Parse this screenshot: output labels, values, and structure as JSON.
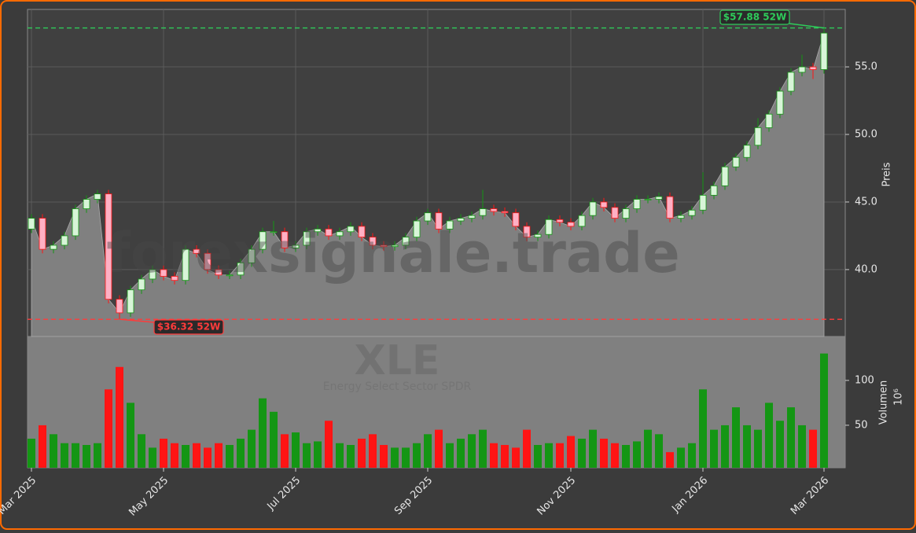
{
  "chart_data": {
    "type": "candlestick",
    "watermark": "forexsignale.trade",
    "ticker": "XLE",
    "subtitle": "Energy Select Sector SPDR",
    "ylabel": "Preis",
    "volume_ylabel": "Volumen",
    "volume_exponent": "10⁶",
    "grid": true,
    "up_color": "#149614",
    "down_color": "#ff1414",
    "candle_up_color": "#d8f5d8",
    "candle_down_color": "#ffb0c4",
    "area_color": "#808080",
    "categories": [
      "Mar 2025",
      null,
      null,
      null,
      null,
      null,
      null,
      null,
      null,
      null,
      null,
      null,
      "May 2025",
      null,
      null,
      null,
      null,
      null,
      null,
      null,
      null,
      null,
      null,
      null,
      "Jul 2025",
      null,
      null,
      null,
      null,
      null,
      null,
      null,
      null,
      null,
      null,
      null,
      "Sep 2025",
      null,
      null,
      null,
      null,
      null,
      null,
      null,
      null,
      null,
      null,
      null,
      null,
      "Nov 2025",
      null,
      null,
      null,
      null,
      null,
      null,
      null,
      null,
      null,
      null,
      null,
      "Jan 2026",
      null,
      null,
      null,
      null,
      null,
      null,
      null,
      null,
      null,
      null,
      "Mar 2026"
    ],
    "open": [
      43.0,
      43.8,
      41.5,
      41.8,
      42.5,
      44.5,
      45.2,
      45.6,
      37.8,
      36.8,
      38.5,
      39.3,
      40,
      39.5,
      39.2,
      41.5,
      41.2,
      40,
      39.6,
      39.6,
      40.5,
      41.5,
      42.8,
      42.8,
      41.6,
      41.8,
      42.8,
      43,
      42.5,
      42.8,
      43.2,
      42.4,
      41.8,
      41.7,
      41.8,
      42.4,
      43.6,
      44.2,
      43,
      43.6,
      43.8,
      44,
      44.5,
      44.3,
      44.2,
      43.2,
      42.4,
      42.6,
      43.7,
      43.5,
      43.2,
      44,
      45,
      44.6,
      43.8,
      44.5,
      45.2,
      45.2,
      45.4,
      43.8,
      44,
      44.4,
      45.5,
      46.2,
      47.6,
      48.3,
      49.2,
      50.5,
      51.5,
      53.2,
      54.6,
      55,
      54.8
    ],
    "high": [
      44.1,
      44.1,
      42.1,
      42.8,
      44.8,
      45.5,
      45.9,
      45.9,
      38.1,
      38.8,
      39.6,
      40.3,
      40.3,
      39.8,
      41.8,
      41.8,
      41.5,
      40.3,
      39.9,
      40.8,
      41.8,
      43.1,
      43.6,
      43.1,
      42.1,
      43.1,
      43.3,
      43.3,
      43.1,
      43.5,
      43.5,
      42.7,
      42.1,
      42.1,
      42.7,
      43.9,
      44.5,
      44.5,
      43.9,
      44.1,
      44.3,
      45.9,
      44.8,
      44.6,
      44.5,
      43.5,
      42.9,
      44.0,
      44.0,
      43.8,
      44.3,
      45.3,
      45.3,
      44.9,
      44.8,
      45.5,
      45.5,
      45.7,
      45.7,
      44.3,
      44.7,
      47.2,
      46.5,
      47.9,
      48.6,
      49.5,
      51.2,
      51.8,
      53.5,
      54.9,
      55.9,
      55.3,
      57.88
    ],
    "low": [
      42.7,
      41.2,
      41.2,
      41.5,
      42.2,
      44.2,
      44.9,
      37.5,
      36.32,
      36.5,
      38.2,
      39.0,
      39.2,
      38.9,
      38.9,
      40.9,
      39.7,
      39.3,
      39.3,
      39.3,
      40.2,
      41.2,
      42.5,
      41.3,
      41.3,
      41.5,
      42.5,
      42.2,
      42.2,
      42.5,
      42.1,
      41.5,
      41.4,
      41.4,
      41.5,
      42.1,
      43.3,
      42.7,
      42.7,
      43.3,
      43.5,
      43.7,
      44.0,
      43.9,
      42.9,
      42.1,
      42.1,
      42.3,
      43.2,
      42.9,
      42.9,
      43.7,
      44.3,
      43.5,
      43.5,
      44.2,
      44.9,
      44.9,
      43.5,
      43.5,
      43.7,
      44.1,
      45.2,
      45.9,
      47.3,
      48.0,
      48.9,
      50.2,
      51.2,
      52.9,
      54.3,
      54.1,
      54.5
    ],
    "close": [
      43.8,
      41.5,
      41.8,
      42.5,
      44.5,
      45.2,
      45.6,
      37.8,
      36.8,
      38.5,
      39.3,
      40,
      39.5,
      39.2,
      41.5,
      41.2,
      40,
      39.6,
      39.6,
      40.5,
      41.5,
      42.8,
      42.8,
      41.6,
      41.8,
      42.8,
      43,
      42.5,
      42.8,
      43.2,
      42.4,
      41.8,
      41.7,
      41.8,
      42.4,
      43.6,
      44.2,
      43,
      43.6,
      43.8,
      44,
      44.5,
      44.3,
      44.2,
      43.2,
      42.4,
      42.6,
      43.7,
      43.5,
      43.2,
      44,
      45,
      44.6,
      43.8,
      44.5,
      45.2,
      45.2,
      45.4,
      43.8,
      44,
      44.4,
      45.5,
      46.2,
      47.6,
      48.3,
      49.2,
      50.5,
      51.5,
      53.2,
      54.6,
      55,
      54.8,
      57.5
    ],
    "volume": [
      35,
      50,
      40,
      30,
      30,
      28,
      30,
      90,
      115,
      75,
      40,
      25,
      35,
      30,
      28,
      30,
      25,
      30,
      28,
      35,
      45,
      80,
      65,
      40,
      42,
      30,
      32,
      55,
      30,
      28,
      35,
      40,
      28,
      25,
      25,
      30,
      40,
      45,
      30,
      35,
      40,
      45,
      30,
      28,
      25,
      45,
      28,
      30,
      30,
      38,
      35,
      45,
      35,
      30,
      28,
      32,
      45,
      40,
      20,
      25,
      30,
      90,
      45,
      50,
      70,
      50,
      45,
      75,
      55,
      70,
      50,
      45,
      130
    ],
    "ylim": [
      35.05,
      59.25
    ],
    "yticks": [
      {
        "value": 40,
        "label": "40.0"
      },
      {
        "value": 45,
        "label": "45.0"
      },
      {
        "value": 50,
        "label": "50.0"
      },
      {
        "value": 55,
        "label": "55.0"
      }
    ],
    "volume_ylim": [
      2.6,
      149
    ],
    "volume_yticks": [
      50,
      100
    ],
    "annotations": [
      {
        "text": "$57.88 52W",
        "value": 57.88,
        "color": "#2ecc5a"
      },
      {
        "text": "$36.32 52W",
        "value": 36.32,
        "color": "#ff3b3b"
      }
    ]
  }
}
